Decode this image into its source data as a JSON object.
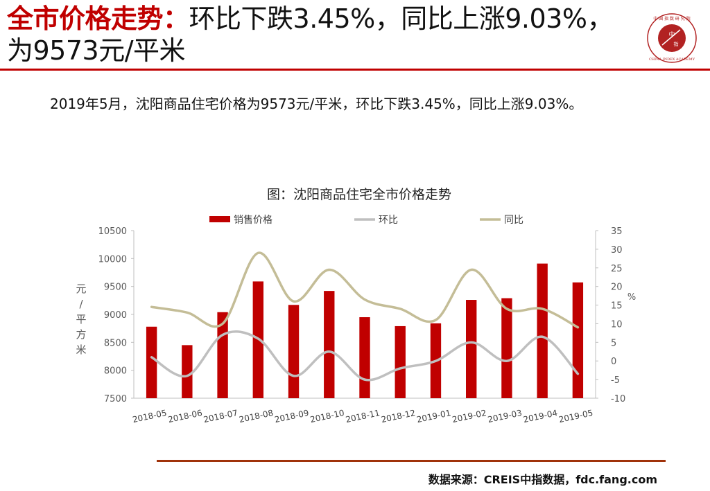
{
  "header": {
    "title_highlight": "全市价格走势：",
    "title_rest": "环比下跌3.45%，同比上涨9.03%，为9573元/平米"
  },
  "logo": {
    "center_text": "中 指",
    "top_text": "中国指数研究院",
    "bottom_text": "CHINA INDEX ACADEMY",
    "color": "#b22222"
  },
  "summary": {
    "text": "2019年5月，沈阳商品住宅价格为9573元/平米，环比下跌3.45%，同比上涨9.03%。"
  },
  "chart_data": {
    "type": "bar",
    "title": "图：沈阳商品住宅全市价格走势",
    "categories": [
      "2018-05",
      "2018-06",
      "2018-07",
      "2018-08",
      "2018-09",
      "2018-10",
      "2018-11",
      "2018-12",
      "2019-01",
      "2019-02",
      "2019-03",
      "2019-04",
      "2019-05"
    ],
    "series": [
      {
        "name": "销售价格",
        "type": "bar",
        "axis": "left",
        "color": "#c00000",
        "values": [
          8780,
          8450,
          9040,
          9590,
          9170,
          9420,
          8950,
          8790,
          8840,
          9260,
          9290,
          9910,
          9573
        ]
      },
      {
        "name": "环比",
        "type": "line",
        "axis": "right",
        "color": "#bfbfbf",
        "values": [
          1,
          -4,
          7,
          6,
          -4,
          2.5,
          -5,
          -2,
          0,
          5,
          0,
          6.5,
          -3.45
        ]
      },
      {
        "name": "同比",
        "type": "line",
        "axis": "right",
        "color": "#c4bd97",
        "values": [
          14.5,
          13,
          10,
          29,
          16,
          24.5,
          16.5,
          14,
          11,
          24.5,
          14,
          14,
          9.03
        ]
      }
    ],
    "y_left": {
      "label": "元/平方米",
      "min": 7500,
      "max": 10500,
      "ticks": [
        "7500",
        "8000",
        "8500",
        "9000",
        "9500",
        "10000",
        "10500"
      ]
    },
    "y_right": {
      "label": "%",
      "min": -10,
      "max": 35,
      "ticks": [
        "-10",
        "-5",
        "0",
        "5",
        "10",
        "15",
        "20",
        "25",
        "30",
        "35"
      ]
    },
    "legend_position": "top",
    "grid": false
  },
  "footer": {
    "source": "数据来源：CREIS中指数据，fdc.fang.com"
  }
}
